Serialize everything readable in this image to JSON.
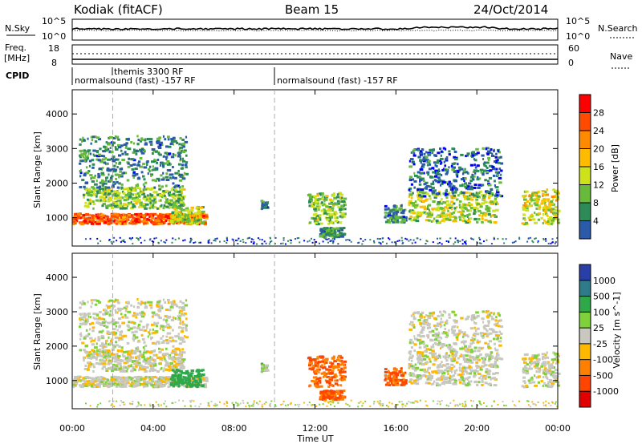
{
  "header": {
    "left": "Kodiak (fitACF)",
    "center": "Beam 15",
    "right": "24/Oct/2014"
  },
  "panels": {
    "nsky_label": "N.Sky",
    "nsearch_label": "N.Search",
    "nsky_ticks": [
      "10^5",
      "10^0"
    ],
    "nsearch_ticks": [
      "10^5",
      "10^0"
    ],
    "freq_label_top": "Freq.",
    "freq_label_unit": "[MHz]",
    "freq_ticks": [
      "18",
      "8"
    ],
    "nave_label": "Nave",
    "nave_ticks": [
      "60",
      "0"
    ],
    "cpid_label": "CPID",
    "cpid_entries": [
      {
        "text": "themis 3300 RF",
        "time_h": 2.0
      },
      {
        "text": "normalsound (fast) -157 RF",
        "time_h": 0.0
      },
      {
        "text": "normalsound (fast) -157 RF",
        "time_h": 10.0
      }
    ]
  },
  "power_colorbar": {
    "label": "Power [dB]",
    "ticks": [
      "28",
      "24",
      "20",
      "16",
      "12",
      "8",
      "4"
    ],
    "colors": [
      "#ff0000",
      "#ff4a00",
      "#ff8a00",
      "#ffbb00",
      "#cde21a",
      "#68bb3a",
      "#2e8b57",
      "#2a5aa8",
      "#0000ff"
    ]
  },
  "velocity_colorbar": {
    "label": "Velocity [m s^-1]",
    "ticks": [
      "1000",
      "500",
      "100",
      "25",
      "-25",
      "-100",
      "-500",
      "-1000"
    ],
    "colors": [
      "#2a3ea8",
      "#2e7b8a",
      "#2fa84a",
      "#7fd13b",
      "#c8c8c0",
      "#ffb800",
      "#ff8000",
      "#ff4500",
      "#e00000"
    ]
  },
  "chart_data": {
    "type": "heatmap",
    "xlabel": "Time UT",
    "x_ticks": [
      "00:00",
      "04:00",
      "08:00",
      "12:00",
      "16:00",
      "20:00",
      "00:00"
    ],
    "xlim_hours": [
      0,
      24
    ],
    "ylabel": "Slant Range [km]",
    "y_ticks": [
      1000,
      2000,
      3000,
      4000
    ],
    "ylim_km": [
      180,
      4700
    ],
    "echo_regions": [
      {
        "t0": 0.0,
        "t1": 6.6,
        "r_center": 950,
        "r_width": 300,
        "power_db": 26,
        "velocity_ms": 0
      },
      {
        "t0": 0.5,
        "t1": 5.5,
        "r_center": 1550,
        "r_width": 600,
        "power_db": 14,
        "velocity_ms": 0
      },
      {
        "t0": 0.3,
        "t1": 5.6,
        "r_center": 2600,
        "r_width": 1500,
        "power_db": 10,
        "velocity_ms": 0
      },
      {
        "t0": 4.8,
        "t1": 6.4,
        "r_center": 1050,
        "r_width": 500,
        "power_db": 16,
        "velocity_ms": 100
      },
      {
        "t0": 9.3,
        "t1": 9.6,
        "r_center": 1350,
        "r_width": 250,
        "power_db": 10,
        "velocity_ms": 25
      },
      {
        "t0": 11.6,
        "t1": 13.4,
        "r_center": 1250,
        "r_width": 900,
        "power_db": 14,
        "velocity_ms": -300
      },
      {
        "t0": 12.2,
        "t1": 13.4,
        "r_center": 560,
        "r_width": 260,
        "power_db": 10,
        "velocity_ms": -300
      },
      {
        "t0": 15.4,
        "t1": 16.4,
        "r_center": 1100,
        "r_width": 500,
        "power_db": 10,
        "velocity_ms": -300
      },
      {
        "t0": 16.6,
        "t1": 21.0,
        "r_center": 1300,
        "r_width": 900,
        "power_db": 16,
        "velocity_ms": 0
      },
      {
        "t0": 16.6,
        "t1": 21.2,
        "r_center": 2300,
        "r_width": 1400,
        "power_db": 8,
        "velocity_ms": 0
      },
      {
        "t0": 22.2,
        "t1": 24.0,
        "r_center": 1300,
        "r_width": 1000,
        "power_db": 18,
        "velocity_ms": 0
      }
    ],
    "markers_hours": [
      2.0,
      10.0
    ]
  }
}
